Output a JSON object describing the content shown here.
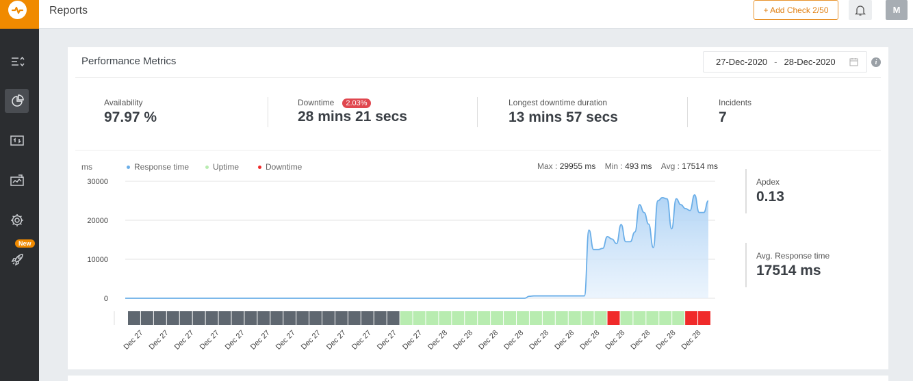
{
  "app": {
    "page_title": "Reports",
    "add_check_label": "+ Add Check 2/50",
    "avatar_initial": "M",
    "new_badge": "New",
    "brand_color": "#f08a00"
  },
  "sidebar": {
    "items": [
      {
        "icon": "list-sort-icon",
        "active": false
      },
      {
        "icon": "reports-icon",
        "active": true
      },
      {
        "icon": "transfer-icon",
        "active": false
      },
      {
        "icon": "monitor-icon",
        "active": false
      },
      {
        "icon": "gear-icon",
        "active": false
      },
      {
        "icon": "rocket-icon",
        "active": false
      }
    ]
  },
  "card": {
    "title": "Performance Metrics",
    "date_from": "27-Dec-2020",
    "date_sep": "-",
    "date_to": "28-Dec-2020",
    "metrics": [
      {
        "label": "Availability",
        "value": "97.97 %"
      },
      {
        "label": "Downtime",
        "value": "28 mins 21 secs",
        "badge": "2.03%"
      },
      {
        "label": "Longest downtime duration",
        "value": "13 mins 57 secs"
      },
      {
        "label": "Incidents",
        "value": "7"
      }
    ],
    "apdex": {
      "label": "Apdex",
      "value": "0.13"
    },
    "avg_response": {
      "label": "Avg. Response time",
      "value": "17514 ms"
    }
  },
  "chart_data": {
    "type": "area",
    "unit_label": "ms",
    "legend": [
      {
        "name": "Response time",
        "color": "#6aaee8"
      },
      {
        "name": "Uptime",
        "color": "#b8ecb0"
      },
      {
        "name": "Downtime",
        "color": "#f02a2a"
      }
    ],
    "stats": {
      "max_label": "Max :",
      "max_value": "29955 ms",
      "min_label": "Min :",
      "min_value": "493 ms",
      "avg_label": "Avg :",
      "avg_value": "17514 ms"
    },
    "y_ticks": [
      "30000",
      "20000",
      "10000",
      "0"
    ],
    "ylim": [
      0,
      30000
    ],
    "x_tick_labels": [
      "Dec 27",
      "Dec 27",
      "Dec 27",
      "Dec 27",
      "Dec 27",
      "Dec 27",
      "Dec 27",
      "Dec 27",
      "Dec 27",
      "Dec 27",
      "Dec 27",
      "Dec 27",
      "Dec 28",
      "Dec 28",
      "Dec 28",
      "Dec 28",
      "Dec 28",
      "Dec 28",
      "Dec 28",
      "Dec 28",
      "Dec 28",
      "Dec 28",
      "Dec 28"
    ],
    "series": [
      {
        "name": "Response time",
        "values": [
          0,
          0,
          0,
          0,
          0,
          0,
          0,
          0,
          0,
          0,
          0,
          0,
          0,
          0,
          0,
          0,
          0,
          0,
          0,
          0,
          0,
          0,
          0,
          0,
          0,
          0,
          0,
          0,
          0,
          0,
          0,
          0,
          0,
          0,
          0,
          0,
          0,
          0,
          0,
          0,
          0,
          0,
          0,
          0,
          0,
          0,
          0,
          0,
          0,
          0,
          0,
          0,
          0,
          0,
          0,
          0,
          0,
          0,
          0,
          0,
          0,
          0,
          0,
          0,
          0,
          0,
          0,
          0,
          0,
          0,
          0,
          0,
          0,
          0,
          0,
          0,
          0,
          0,
          0,
          0,
          0,
          0,
          0,
          0,
          0,
          0,
          0,
          0,
          500,
          600,
          600,
          600,
          600,
          600,
          600,
          600,
          600,
          600,
          600,
          600,
          600,
          17500,
          12500,
          12500,
          12800,
          15800,
          15200,
          14000,
          18900,
          14500,
          14500,
          17000,
          24000,
          22000,
          19000,
          13000,
          25000,
          25800,
          25500,
          17800,
          25500,
          24000,
          23000,
          22500,
          26500,
          22000,
          22000,
          25000
        ]
      }
    ],
    "status_bar": [
      "up",
      "up",
      "up",
      "up",
      "up",
      "up",
      "up",
      "up",
      "up",
      "up",
      "up",
      "up",
      "up",
      "up",
      "up",
      "up",
      "up",
      "up",
      "up",
      "up",
      "up",
      "uptime",
      "uptime",
      "uptime",
      "uptime",
      "uptime",
      "uptime",
      "uptime",
      "uptime",
      "uptime",
      "uptime",
      "uptime",
      "uptime",
      "uptime",
      "uptime",
      "uptime",
      "uptime",
      "down",
      "uptime",
      "uptime",
      "uptime",
      "uptime",
      "uptime",
      "down",
      "down"
    ],
    "status_colors": {
      "up": "#5f6770",
      "uptime": "#b8ecb0",
      "down": "#f02a2a"
    }
  }
}
